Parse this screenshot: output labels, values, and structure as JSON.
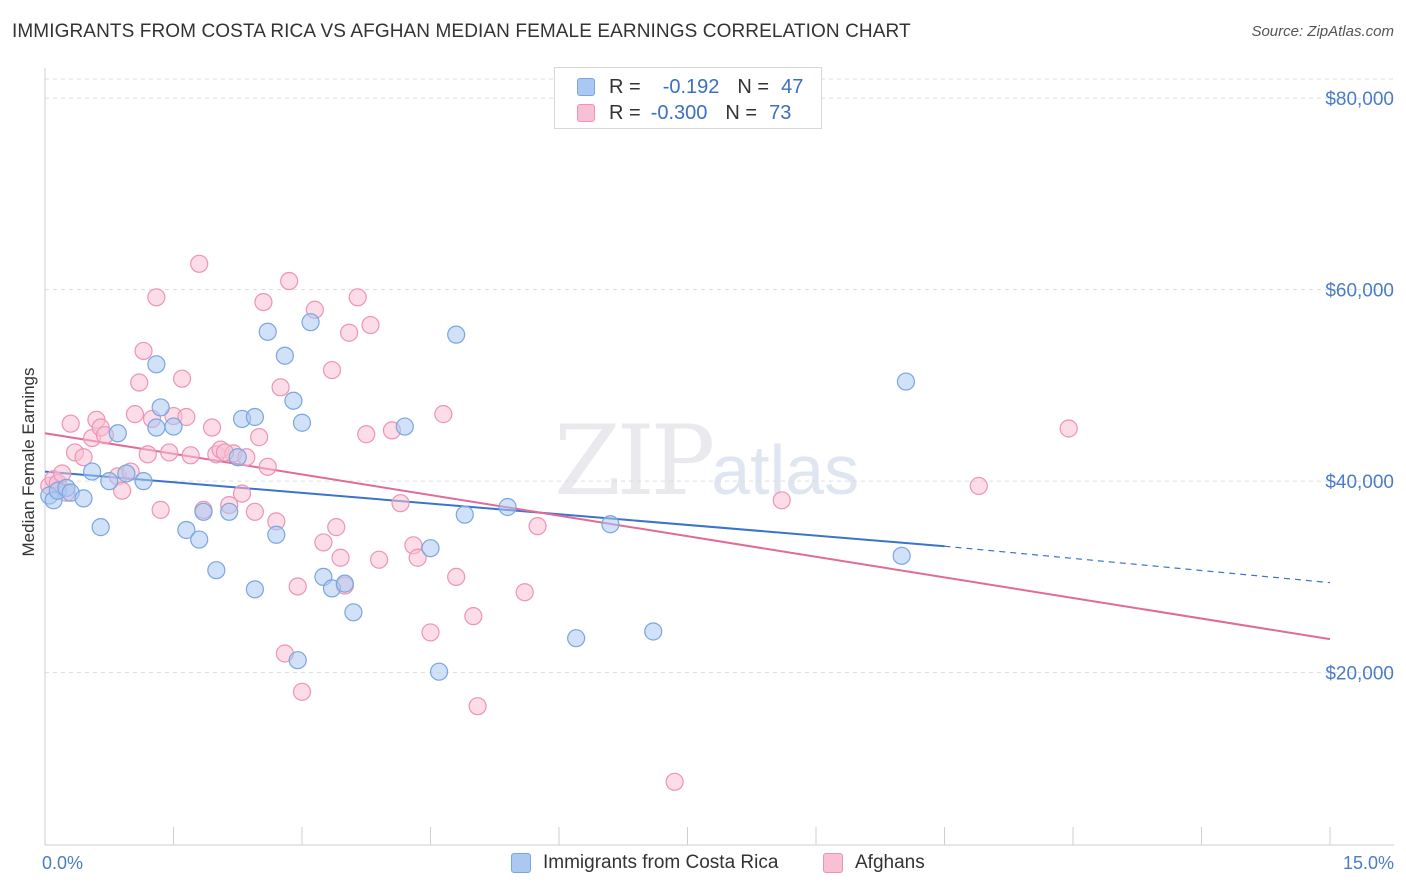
{
  "header": {
    "title": "IMMIGRANTS FROM COSTA RICA VS AFGHAN MEDIAN FEMALE EARNINGS CORRELATION CHART",
    "source": "Source: ZipAtlas.com"
  },
  "watermark": {
    "zip": "ZIP",
    "atlas": "atlas"
  },
  "legend": {
    "rows": [
      {
        "r_label": "R =",
        "r_value": "-0.192",
        "n_label": "N =",
        "n_value": "47"
      },
      {
        "r_label": "R =",
        "r_value": "-0.300",
        "n_label": "N =",
        "n_value": "73"
      }
    ]
  },
  "bottom_legend": {
    "series1": "Immigrants from Costa Rica",
    "series2": "Afghans"
  },
  "colors": {
    "series1_fill": "#aac8f2",
    "series1_stroke": "#7aa6de",
    "series1_line": "#3a74cc",
    "series2_fill": "#f8c0d4",
    "series2_stroke": "#ec94b4",
    "series2_line": "#e06a98",
    "grid": "#dedede",
    "tick_text": "#4a7cc7"
  },
  "chart_data": {
    "type": "scatter",
    "title": "IMMIGRANTS FROM COSTA RICA VS AFGHAN MEDIAN FEMALE EARNINGS CORRELATION CHART",
    "xlabel": "",
    "ylabel": "Median Female Earnings",
    "xlim": [
      0,
      15
    ],
    "ylim": [
      2000,
      82000
    ],
    "x_tick_labels": [
      "0.0%",
      "15.0%"
    ],
    "y_ticks": [
      20000,
      40000,
      60000,
      80000
    ],
    "y_tick_labels": [
      "$20,000",
      "$40,000",
      "$60,000",
      "$80,000"
    ],
    "grid": true,
    "legend_position": "top-center",
    "series": [
      {
        "name": "Immigrants from Costa Rica",
        "R": -0.192,
        "N": 47,
        "trend": {
          "x0": 0,
          "y0": 41000,
          "x1": 10.5,
          "y1": 33200,
          "dashed_to_x": 15,
          "dashed_to_y": 29400
        },
        "points": [
          [
            0.05,
            38500
          ],
          [
            0.1,
            38000
          ],
          [
            0.15,
            39000
          ],
          [
            0.25,
            39300
          ],
          [
            0.3,
            38800
          ],
          [
            0.45,
            38200
          ],
          [
            0.55,
            41000
          ],
          [
            0.65,
            35200
          ],
          [
            0.75,
            40000
          ],
          [
            0.85,
            45000
          ],
          [
            0.95,
            40800
          ],
          [
            1.15,
            40000
          ],
          [
            1.3,
            52200
          ],
          [
            1.35,
            47700
          ],
          [
            1.3,
            45600
          ],
          [
            1.5,
            45700
          ],
          [
            1.65,
            34900
          ],
          [
            1.8,
            33900
          ],
          [
            1.85,
            36800
          ],
          [
            2.0,
            30700
          ],
          [
            2.15,
            36800
          ],
          [
            2.25,
            42500
          ],
          [
            2.3,
            46500
          ],
          [
            2.45,
            46700
          ],
          [
            2.45,
            28700
          ],
          [
            2.6,
            55600
          ],
          [
            2.7,
            34400
          ],
          [
            2.8,
            53100
          ],
          [
            2.9,
            48400
          ],
          [
            2.95,
            21300
          ],
          [
            3.0,
            46100
          ],
          [
            3.1,
            56600
          ],
          [
            3.25,
            30000
          ],
          [
            3.35,
            28800
          ],
          [
            3.5,
            29300
          ],
          [
            3.6,
            26300
          ],
          [
            4.2,
            45700
          ],
          [
            4.5,
            33000
          ],
          [
            4.6,
            20100
          ],
          [
            4.8,
            55300
          ],
          [
            4.9,
            36500
          ],
          [
            5.4,
            37300
          ],
          [
            6.2,
            23600
          ],
          [
            6.6,
            35500
          ],
          [
            7.1,
            24300
          ],
          [
            10.0,
            32200
          ],
          [
            10.05,
            50400
          ]
        ]
      },
      {
        "name": "Afghans",
        "R": -0.3,
        "N": 73,
        "trend": {
          "x0": 0,
          "y0": 45000,
          "x1": 15,
          "y1": 23500
        },
        "points": [
          [
            0.05,
            39500
          ],
          [
            0.1,
            40200
          ],
          [
            0.15,
            39800
          ],
          [
            0.2,
            40800
          ],
          [
            0.3,
            46000
          ],
          [
            0.35,
            43000
          ],
          [
            0.45,
            42500
          ],
          [
            0.55,
            44500
          ],
          [
            0.6,
            46400
          ],
          [
            0.65,
            45600
          ],
          [
            0.7,
            44800
          ],
          [
            0.85,
            40500
          ],
          [
            0.9,
            39000
          ],
          [
            1.0,
            41000
          ],
          [
            1.05,
            47000
          ],
          [
            1.1,
            50300
          ],
          [
            1.15,
            53600
          ],
          [
            1.2,
            42800
          ],
          [
            1.3,
            59200
          ],
          [
            1.35,
            37000
          ],
          [
            1.45,
            43000
          ],
          [
            1.5,
            46800
          ],
          [
            1.6,
            50700
          ],
          [
            1.65,
            46700
          ],
          [
            1.7,
            42700
          ],
          [
            1.8,
            62700
          ],
          [
            1.85,
            37000
          ],
          [
            1.95,
            45600
          ],
          [
            2.0,
            42800
          ],
          [
            2.05,
            43300
          ],
          [
            2.15,
            37500
          ],
          [
            2.2,
            42900
          ],
          [
            2.3,
            38700
          ],
          [
            2.35,
            42500
          ],
          [
            2.45,
            36800
          ],
          [
            2.5,
            44600
          ],
          [
            2.55,
            58700
          ],
          [
            2.6,
            41500
          ],
          [
            2.7,
            35800
          ],
          [
            2.75,
            49800
          ],
          [
            2.8,
            22000
          ],
          [
            2.85,
            60900
          ],
          [
            2.95,
            29000
          ],
          [
            3.0,
            18000
          ],
          [
            3.15,
            57900
          ],
          [
            3.25,
            33600
          ],
          [
            3.35,
            51600
          ],
          [
            3.4,
            35200
          ],
          [
            3.5,
            29100
          ],
          [
            3.55,
            55500
          ],
          [
            3.65,
            59200
          ],
          [
            3.75,
            44900
          ],
          [
            3.8,
            56300
          ],
          [
            3.9,
            31800
          ],
          [
            4.05,
            45300
          ],
          [
            4.15,
            37700
          ],
          [
            4.3,
            33300
          ],
          [
            4.35,
            32000
          ],
          [
            4.5,
            24200
          ],
          [
            4.65,
            47000
          ],
          [
            4.8,
            30000
          ],
          [
            5.0,
            25900
          ],
          [
            5.05,
            16500
          ],
          [
            5.6,
            28400
          ],
          [
            5.75,
            35300
          ],
          [
            7.35,
            8600
          ],
          [
            8.6,
            38000
          ],
          [
            10.9,
            39500
          ],
          [
            11.95,
            45500
          ],
          [
            0.25,
            38800
          ],
          [
            1.25,
            46500
          ],
          [
            2.1,
            43000
          ],
          [
            3.45,
            32000
          ]
        ]
      }
    ]
  }
}
